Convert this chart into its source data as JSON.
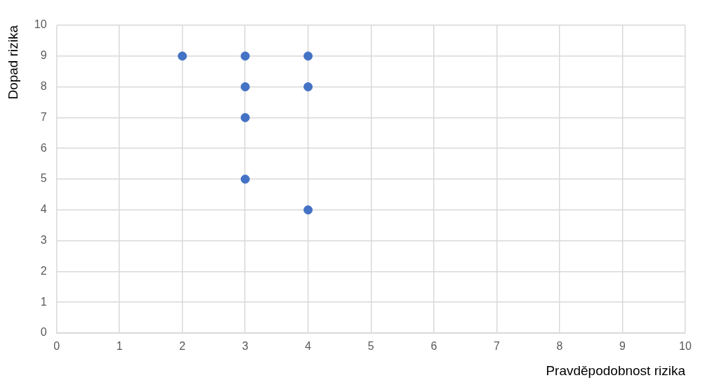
{
  "chart_data": {
    "type": "scatter",
    "xlabel": "Pravděpodobnost rizika",
    "ylabel": "Dopad rizika",
    "x": [
      2,
      3,
      4,
      3,
      4,
      3,
      3,
      4
    ],
    "series": [
      {
        "color": "#4472c4",
        "values": [
          9,
          9,
          9,
          8,
          8,
          7,
          5,
          4
        ]
      }
    ],
    "xlim": [
      0,
      10
    ],
    "xticks": [
      0,
      1,
      2,
      3,
      4,
      5,
      6,
      7,
      8,
      9,
      10
    ],
    "ylim": [
      0,
      10
    ],
    "yticks": [
      0,
      1,
      2,
      3,
      4,
      5,
      6,
      7,
      8,
      9,
      10
    ],
    "grid": true,
    "legend": false,
    "marker": "circle"
  }
}
